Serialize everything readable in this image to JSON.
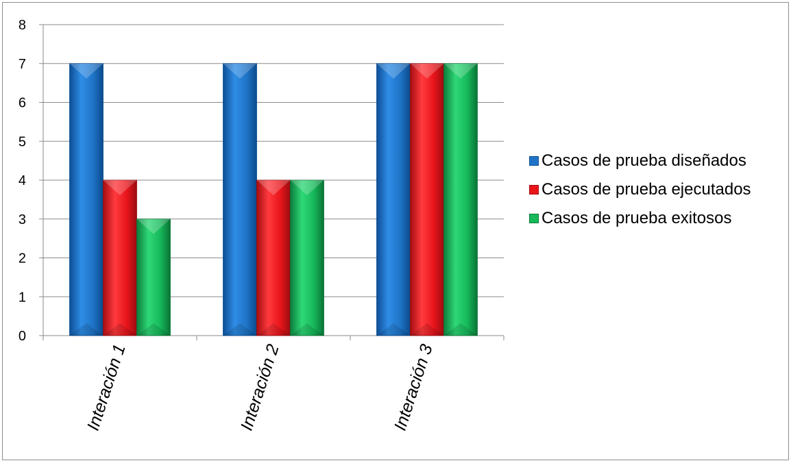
{
  "chart_data": {
    "type": "bar",
    "categories": [
      "Interación 1",
      "Interación 2",
      "Interación 3"
    ],
    "series": [
      {
        "name": "Casos de prueba diseñados",
        "values": [
          7,
          7,
          7
        ],
        "color": "#1f74c7"
      },
      {
        "name": "Casos de prueba ejecutados",
        "values": [
          4,
          4,
          7
        ],
        "color": "#e8151b"
      },
      {
        "name": "Casos de prueba exitosos",
        "values": [
          3,
          4,
          7
        ],
        "color": "#16b85a"
      }
    ],
    "ylim": [
      0,
      8
    ],
    "yticks": [
      0,
      1,
      2,
      3,
      4,
      5,
      6,
      7,
      8
    ],
    "grid": true,
    "legend_position": "right"
  }
}
